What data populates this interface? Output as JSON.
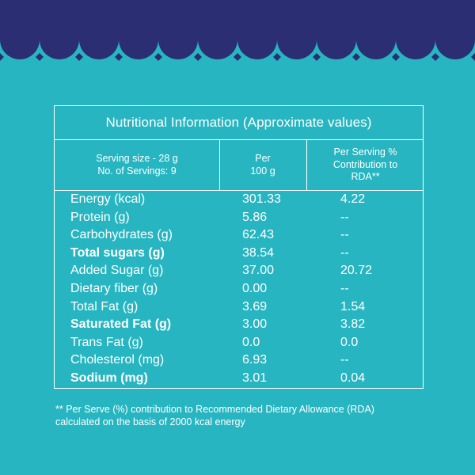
{
  "colors": {
    "background": "#27b6c1",
    "band": "#2b2e72",
    "text": "#ffffff"
  },
  "table": {
    "title": "Nutritional Information (Approximate values)",
    "header": {
      "serving_size": "Serving size - 28 g",
      "servings": "No. of Servings: 9",
      "per_line1": "Per",
      "per_line2": "100 g",
      "rda_line1": "Per Serving %",
      "rda_line2": "Contribution to",
      "rda_line3": "RDA**"
    },
    "rows": [
      {
        "name": "Energy (kcal)",
        "per100": "301.33",
        "rda": "4.22",
        "bold": false
      },
      {
        "name": "Protein (g)",
        "per100": "5.86",
        "rda": "--",
        "bold": false
      },
      {
        "name": "Carbohydrates (g)",
        "per100": "62.43",
        "rda": "--",
        "bold": false
      },
      {
        "name": "Total sugars (g)",
        "per100": "38.54",
        "rda": "--",
        "bold": true
      },
      {
        "name": "Added Sugar (g)",
        "per100": "37.00",
        "rda": "20.72",
        "bold": false
      },
      {
        "name": "Dietary fiber (g)",
        "per100": "0.00",
        "rda": "--",
        "bold": false
      },
      {
        "name": "Total Fat (g)",
        "per100": "3.69",
        "rda": "1.54",
        "bold": false
      },
      {
        "name": "Saturated Fat (g)",
        "per100": "3.00",
        "rda": "3.82",
        "bold": true
      },
      {
        "name": "Trans Fat (g)",
        "per100": "0.0",
        "rda": "0.0",
        "bold": false
      },
      {
        "name": "Cholesterol (mg)",
        "per100": "6.93",
        "rda": "--",
        "bold": false
      },
      {
        "name": "Sodium (mg)",
        "per100": "3.01",
        "rda": "0.04",
        "bold": true
      }
    ]
  },
  "footnote": {
    "line1": "** Per Serve (%) contribution to Recommended Dietary Allowance (RDA)",
    "line2": "calculated on the basis of 2000 kcal energy"
  }
}
